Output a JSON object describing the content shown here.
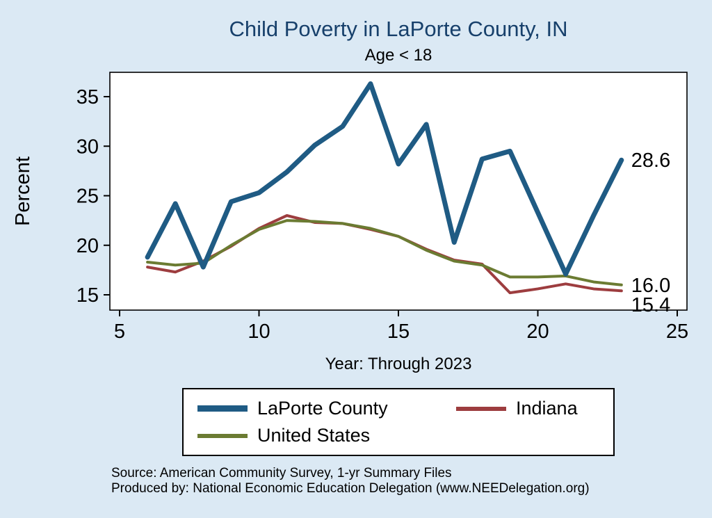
{
  "title": "Child Poverty in LaPorte County, IN",
  "subtitle": "Age < 18",
  "colors": {
    "background": "#dbe9f4",
    "title": "#17406b",
    "axis": "#000000",
    "plot_background": "#ffffff"
  },
  "chart_data": {
    "type": "line",
    "title": "Child Poverty in LaPorte County, IN",
    "subtitle": "Age < 18",
    "xlabel": "Year: Through 2023",
    "ylabel": "Percent",
    "xlim": [
      5,
      25
    ],
    "xticks": [
      5,
      10,
      15,
      20,
      25
    ],
    "yticks": [
      15,
      20,
      25,
      30,
      35
    ],
    "grid": false,
    "legend_position": "bottom",
    "x": [
      6,
      7,
      8,
      9,
      10,
      11,
      12,
      13,
      14,
      15,
      16,
      17,
      18,
      19,
      20,
      21,
      22,
      23
    ],
    "series": [
      {
        "name": "LaPorte County",
        "color": "#1f5b84",
        "width": 7,
        "end_label": "28.6",
        "values": [
          18.8,
          24.2,
          17.8,
          24.4,
          25.3,
          27.4,
          30.1,
          32.0,
          36.3,
          28.2,
          32.2,
          20.3,
          28.7,
          29.5,
          23.3,
          17.1,
          23.0,
          28.6
        ]
      },
      {
        "name": "Indiana",
        "color": "#9d3d3f",
        "width": 4,
        "end_label": "15.4",
        "values": [
          17.8,
          17.3,
          18.4,
          19.9,
          21.7,
          23.0,
          22.3,
          22.2,
          21.6,
          20.9,
          19.6,
          18.5,
          18.1,
          15.2,
          15.6,
          16.1,
          15.6,
          15.4
        ]
      },
      {
        "name": "United States",
        "color": "#6b7b32",
        "width": 4,
        "end_label": "16.0",
        "values": [
          18.3,
          18.0,
          18.2,
          20.0,
          21.6,
          22.5,
          22.4,
          22.2,
          21.7,
          20.9,
          19.5,
          18.4,
          18.0,
          16.8,
          16.8,
          16.9,
          16.3,
          16.0
        ]
      }
    ],
    "end_labels": [
      "28.6",
      "16.0",
      "15.4"
    ]
  },
  "source": {
    "line1": "Source: American Community Survey, 1-yr Summary Files",
    "line2": "Produced by: National Economic Education Delegation (www.NEEDelegation.org)"
  }
}
